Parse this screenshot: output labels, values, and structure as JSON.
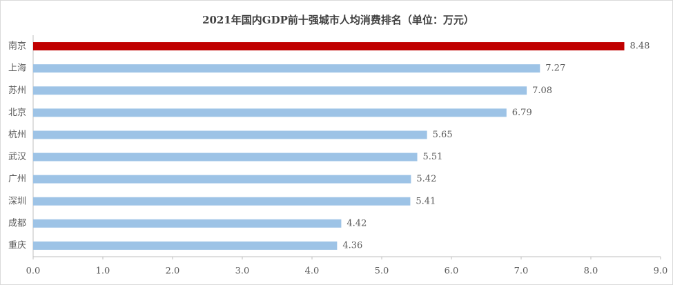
{
  "chart_data": {
    "type": "hbar",
    "title": "2021年国内GDP前十强城市人均消费排名（单位：万元）",
    "categories": [
      "南京",
      "上海",
      "苏州",
      "北京",
      "杭州",
      "武汉",
      "广州",
      "深圳",
      "成都",
      "重庆"
    ],
    "values": [
      8.48,
      7.27,
      7.08,
      6.79,
      5.65,
      5.51,
      5.42,
      5.41,
      4.42,
      4.36
    ],
    "colors": [
      "#c00000",
      "#9dc3e6",
      "#9dc3e6",
      "#9dc3e6",
      "#9dc3e6",
      "#9dc3e6",
      "#9dc3e6",
      "#9dc3e6",
      "#9dc3e6",
      "#9dc3e6"
    ],
    "xlim": [
      0,
      9
    ],
    "xticks": [
      {
        "value": 0,
        "label": "0.0"
      },
      {
        "value": 1,
        "label": "1.0"
      },
      {
        "value": 2,
        "label": "2.0"
      },
      {
        "value": 3,
        "label": "3.0"
      },
      {
        "value": 4,
        "label": "4.0"
      },
      {
        "value": 5,
        "label": "5.0"
      },
      {
        "value": 6,
        "label": "6.0"
      },
      {
        "value": 7,
        "label": "7.0"
      },
      {
        "value": 8,
        "label": "8.0"
      },
      {
        "value": 9,
        "label": "9.0"
      }
    ],
    "grid": false
  }
}
